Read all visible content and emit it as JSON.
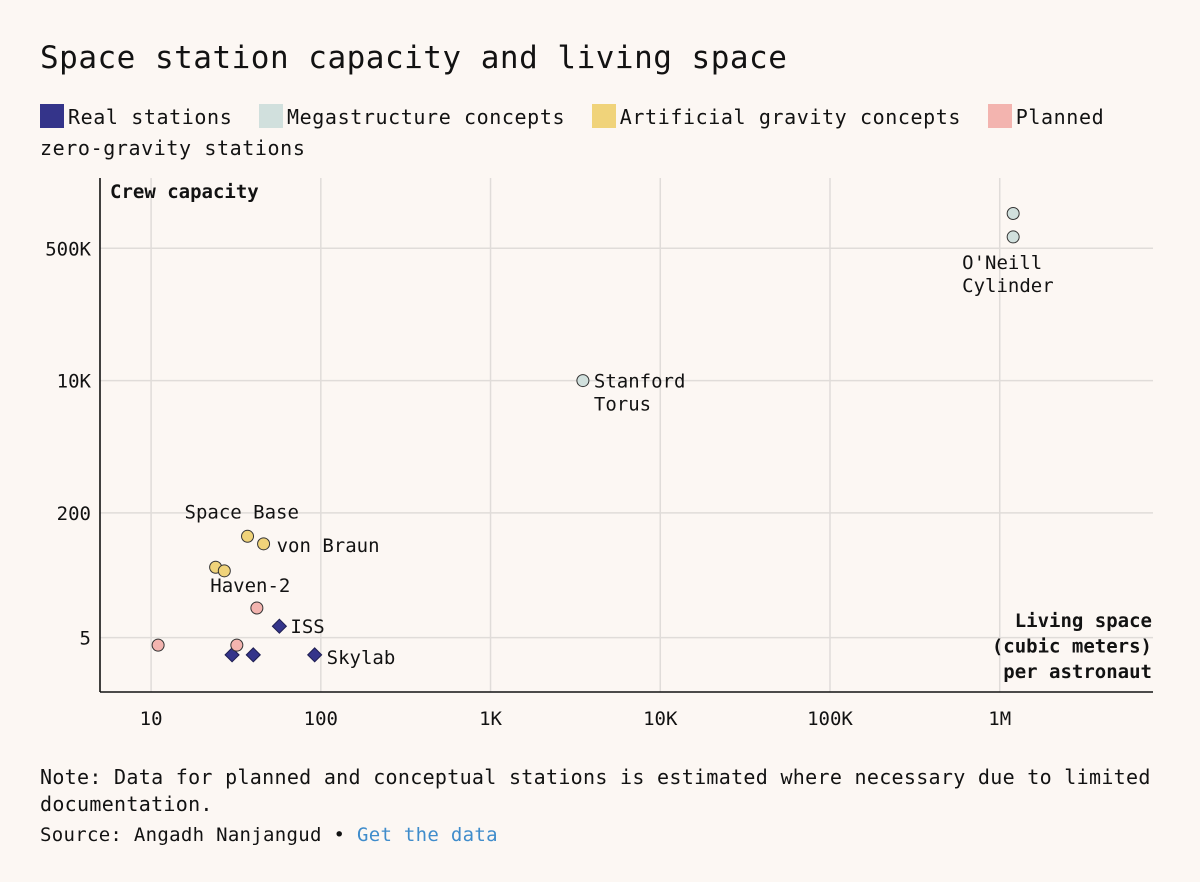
{
  "chart_data": {
    "type": "scatter",
    "title": "Space station capacity and living space",
    "xlabel": "Living space (cubic meters) per astronaut",
    "xlabel_lines": [
      "Living space",
      "(cubic meters)",
      "per astronaut"
    ],
    "ylabel": "Crew capacity",
    "xscale": "log",
    "yscale": "log",
    "xlim": [
      5,
      8000000
    ],
    "ylim": [
      1,
      4000000
    ],
    "grid": true,
    "x_ticks": [
      {
        "value": 10,
        "label": "10"
      },
      {
        "value": 100,
        "label": "100"
      },
      {
        "value": 1000,
        "label": "1K"
      },
      {
        "value": 10000,
        "label": "10K"
      },
      {
        "value": 100000,
        "label": "100K"
      },
      {
        "value": 1000000,
        "label": "1M"
      }
    ],
    "y_ticks": [
      {
        "value": 5,
        "label": "5"
      },
      {
        "value": 200,
        "label": "200"
      },
      {
        "value": 10000,
        "label": "10K"
      },
      {
        "value": 500000,
        "label": "500K"
      }
    ],
    "series": [
      {
        "name": "Real stations",
        "legend_label": "Real stations",
        "color": "#34348a",
        "marker": "diamond",
        "points": [
          {
            "x": 30,
            "y": 3,
            "label": ""
          },
          {
            "x": 40,
            "y": 3,
            "label": ""
          },
          {
            "x": 57,
            "y": 7,
            "label": "ISS"
          },
          {
            "x": 92,
            "y": 3,
            "label": "Skylab"
          }
        ]
      },
      {
        "name": "Megastructure concepts",
        "legend_label": "Megastructure concepts",
        "color": "#d1e0dd",
        "marker": "circle",
        "points": [
          {
            "x": 3500,
            "y": 10000,
            "label": "Stanford Torus"
          },
          {
            "x": 1200000,
            "y": 1400000,
            "label": ""
          },
          {
            "x": 1200000,
            "y": 700000,
            "label": "O'Neill Cylinder"
          }
        ]
      },
      {
        "name": "Artificial gravity concepts",
        "legend_label": "Artificial gravity concepts",
        "color": "#f0d37a",
        "marker": "circle",
        "points": [
          {
            "x": 37,
            "y": 100,
            "label": "Space Base"
          },
          {
            "x": 46,
            "y": 80,
            "label": "von Braun"
          },
          {
            "x": 24,
            "y": 40,
            "label": ""
          },
          {
            "x": 27,
            "y": 36,
            "label": "Haven-2"
          }
        ]
      },
      {
        "name": "Planned zero-gravity stations",
        "legend_label": "Planned zero-gravity stations",
        "color": "#f3b4af",
        "marker": "circle",
        "points": [
          {
            "x": 42,
            "y": 12,
            "label": ""
          },
          {
            "x": 11,
            "y": 4,
            "label": ""
          },
          {
            "x": 32,
            "y": 4,
            "label": ""
          }
        ]
      }
    ]
  },
  "note": "Note: Data for planned and conceptual stations is estimated where necessary due to limited documentation.",
  "source": {
    "prefix": "Source: Angadh Nanjangud •",
    "link_text": "Get the data"
  }
}
